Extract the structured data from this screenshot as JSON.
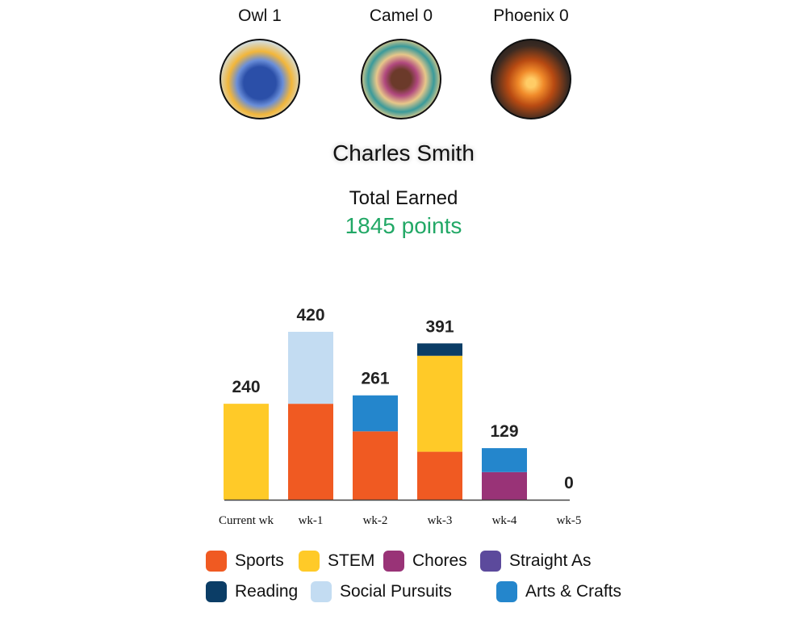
{
  "badges": [
    {
      "label": "Owl 1",
      "image": "owl"
    },
    {
      "label": "Camel 0",
      "image": "llama"
    },
    {
      "label": "Phoenix 0",
      "image": "phoenix"
    }
  ],
  "user": {
    "name": "Charles Smith"
  },
  "total": {
    "label": "Total Earned",
    "value": "1845 points",
    "color": "#22a866"
  },
  "chart_data": {
    "type": "bar",
    "stacked": true,
    "categories": [
      "Current wk",
      "wk-1",
      "wk-2",
      "wk-3",
      "wk-4",
      "wk-5"
    ],
    "totals": [
      240,
      420,
      261,
      391,
      129,
      0
    ],
    "series": [
      {
        "name": "Sports",
        "color": "#f05a22",
        "values": [
          0,
          240,
          171,
          120,
          0,
          0
        ]
      },
      {
        "name": "STEM",
        "color": "#ffca28",
        "values": [
          240,
          0,
          0,
          240,
          0,
          0
        ]
      },
      {
        "name": "Chores",
        "color": "#993377",
        "values": [
          0,
          0,
          0,
          0,
          69,
          0
        ]
      },
      {
        "name": "Straight As",
        "color": "#5c4a9c",
        "values": [
          0,
          0,
          0,
          0,
          0,
          0
        ]
      },
      {
        "name": "Reading",
        "color": "#0b3d66",
        "values": [
          0,
          0,
          0,
          31,
          0,
          0
        ]
      },
      {
        "name": "Social Pursuits",
        "color": "#c3dcf2",
        "values": [
          0,
          180,
          0,
          0,
          0,
          0
        ]
      },
      {
        "name": "Arts & Crafts",
        "color": "#2486cc",
        "values": [
          0,
          0,
          90,
          0,
          60,
          0
        ]
      }
    ],
    "ylim": [
      0,
      420
    ],
    "grid": false,
    "legend": "bottom"
  }
}
